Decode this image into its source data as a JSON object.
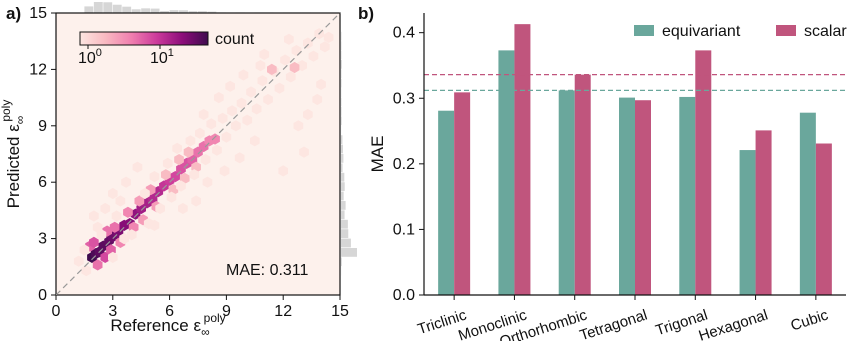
{
  "panel_a": {
    "label": "a)",
    "colorbar": {
      "title": "count",
      "tick_labels": [
        {
          "base": "10",
          "exp": "0"
        },
        {
          "base": "10",
          "exp": "1"
        }
      ],
      "colormap": [
        "#fde6e1",
        "#f9b9c1",
        "#f07faf",
        "#cc3a9b",
        "#8c0d7a",
        "#3f0b4e"
      ]
    },
    "annotation": "MAE: 0.311",
    "plot_background": "#fdf1ec",
    "diagonal_color": "#999999",
    "marginal_color": "#d6d6d6"
  },
  "panel_b": {
    "label": "b)",
    "legend": [
      "equivariant",
      "scalar"
    ]
  },
  "chart_data": [
    {
      "type": "scatter",
      "subtype": "hexbin",
      "xlabel": {
        "main": "Reference ε",
        "sub": "∞",
        "sup": "poly"
      },
      "ylabel": {
        "main": "Predicted ε",
        "sub": "∞",
        "sup": "poly"
      },
      "xlim": [
        0,
        15
      ],
      "ylim": [
        0,
        15
      ],
      "xticks": [
        0,
        3,
        6,
        9,
        12,
        15
      ],
      "yticks": [
        0,
        3,
        6,
        9,
        12,
        15
      ],
      "reference_line": "y = x (dashed)",
      "color_scale": "log",
      "points": [
        [
          1.9,
          2.0,
          40
        ],
        [
          2.1,
          2.2,
          35
        ],
        [
          2.3,
          2.3,
          30
        ],
        [
          2.5,
          2.6,
          30
        ],
        [
          2.8,
          2.9,
          28
        ],
        [
          3.0,
          3.1,
          25
        ],
        [
          3.3,
          3.3,
          22
        ],
        [
          3.6,
          3.7,
          20
        ],
        [
          3.9,
          3.8,
          20
        ],
        [
          4.2,
          4.3,
          18
        ],
        [
          4.5,
          4.6,
          15
        ],
        [
          4.8,
          4.9,
          14
        ],
        [
          5.1,
          5.1,
          12
        ],
        [
          5.4,
          5.5,
          12
        ],
        [
          5.7,
          5.8,
          10
        ],
        [
          6.0,
          6.1,
          9
        ],
        [
          6.3,
          6.3,
          8
        ],
        [
          6.6,
          6.7,
          7
        ],
        [
          6.9,
          7.0,
          7
        ],
        [
          7.2,
          7.2,
          6
        ],
        [
          7.5,
          7.6,
          5
        ],
        [
          7.8,
          7.9,
          5
        ],
        [
          8.1,
          8.2,
          4
        ],
        [
          8.4,
          8.3,
          4
        ],
        [
          1.8,
          2.6,
          6
        ],
        [
          2.2,
          1.6,
          5
        ],
        [
          2.6,
          2.0,
          8
        ],
        [
          2.0,
          2.8,
          7
        ],
        [
          2.9,
          2.4,
          6
        ],
        [
          3.1,
          3.6,
          5
        ],
        [
          3.4,
          2.8,
          4
        ],
        [
          2.7,
          3.4,
          5
        ],
        [
          3.8,
          4.4,
          4
        ],
        [
          4.1,
          3.6,
          4
        ],
        [
          4.4,
          5.0,
          3
        ],
        [
          4.6,
          4.0,
          3
        ],
        [
          5.0,
          5.6,
          3
        ],
        [
          5.3,
          4.7,
          3
        ],
        [
          5.8,
          6.4,
          2
        ],
        [
          6.2,
          5.6,
          2
        ],
        [
          6.5,
          7.2,
          2
        ],
        [
          6.8,
          6.2,
          2
        ],
        [
          7.0,
          7.6,
          2
        ],
        [
          7.4,
          6.8,
          2
        ],
        [
          1.2,
          1.8,
          1
        ],
        [
          1.6,
          1.3,
          1
        ],
        [
          1.5,
          2.4,
          1
        ],
        [
          2.4,
          3.2,
          1
        ],
        [
          3.0,
          2.0,
          1
        ],
        [
          3.6,
          3.0,
          1
        ],
        [
          2.2,
          3.6,
          1
        ],
        [
          3.2,
          4.2,
          1
        ],
        [
          4.0,
          3.2,
          1
        ],
        [
          4.7,
          5.4,
          1
        ],
        [
          4.9,
          3.8,
          1
        ],
        [
          3.4,
          5.0,
          1
        ],
        [
          5.2,
          6.3,
          1
        ],
        [
          5.5,
          4.6,
          1
        ],
        [
          5.9,
          7.0,
          1
        ],
        [
          6.1,
          5.2,
          1
        ],
        [
          6.4,
          7.8,
          1
        ],
        [
          6.6,
          5.8,
          1
        ],
        [
          7.1,
          8.2,
          1
        ],
        [
          7.3,
          6.4,
          1
        ],
        [
          7.6,
          8.6,
          1
        ],
        [
          7.9,
          7.2,
          1
        ],
        [
          8.2,
          9.1,
          1
        ],
        [
          8.5,
          7.7,
          1
        ],
        [
          8.8,
          9.4,
          1
        ],
        [
          9.0,
          8.4,
          1
        ],
        [
          9.3,
          9.8,
          1
        ],
        [
          9.5,
          9.0,
          1
        ],
        [
          9.8,
          10.2,
          1
        ],
        [
          10.1,
          9.3,
          1
        ],
        [
          10.3,
          10.8,
          1
        ],
        [
          10.6,
          9.9,
          1
        ],
        [
          10.9,
          11.4,
          1
        ],
        [
          11.2,
          10.4,
          1
        ],
        [
          11.5,
          11.9,
          1
        ],
        [
          11.8,
          11.0,
          1
        ],
        [
          12.1,
          12.5,
          1
        ],
        [
          12.4,
          11.6,
          1
        ],
        [
          12.7,
          13.0,
          1
        ],
        [
          13.0,
          12.2,
          1
        ],
        [
          13.3,
          13.4,
          1
        ],
        [
          13.6,
          12.7,
          1
        ],
        [
          13.9,
          13.9,
          1
        ],
        [
          14.2,
          13.2,
          1
        ],
        [
          14.4,
          13.7,
          1
        ],
        [
          11.0,
          12.8,
          1
        ],
        [
          12.3,
          13.6,
          1
        ],
        [
          10.8,
          12.2,
          1
        ],
        [
          13.8,
          10.4,
          1
        ],
        [
          14.0,
          11.2,
          1
        ],
        [
          13.3,
          9.6,
          1
        ],
        [
          12.8,
          9.0,
          1
        ],
        [
          13.1,
          7.6,
          1
        ],
        [
          12.0,
          6.6,
          1
        ],
        [
          10.5,
          8.2,
          1
        ],
        [
          9.7,
          7.3,
          1
        ],
        [
          8.9,
          6.6,
          1
        ],
        [
          8.0,
          6.0,
          1
        ],
        [
          7.4,
          5.0,
          1
        ],
        [
          6.7,
          4.6,
          1
        ],
        [
          5.2,
          3.7,
          1
        ],
        [
          4.3,
          6.8,
          1
        ],
        [
          3.7,
          6.0,
          1
        ],
        [
          3.0,
          5.4,
          1
        ],
        [
          2.6,
          4.6,
          1
        ],
        [
          2.0,
          4.2,
          1
        ],
        [
          9.2,
          11.1,
          1
        ],
        [
          9.9,
          11.7,
          1
        ],
        [
          8.6,
          10.5,
          1
        ],
        [
          7.8,
          9.6,
          1
        ],
        [
          11.4,
          12.0,
          2
        ],
        [
          12.6,
          12.1,
          2
        ]
      ]
    },
    {
      "type": "bar",
      "ylabel": "MAE",
      "ylim": [
        0,
        0.43
      ],
      "yticks": [
        0.0,
        0.1,
        0.2,
        0.3,
        0.4
      ],
      "categories": [
        "Triclinic",
        "Monoclinic",
        "Orthorhombic",
        "Tetragonal",
        "Trigonal",
        "Hexagonal",
        "Cubic"
      ],
      "series": [
        {
          "name": "equivariant",
          "color": "#6aa79c",
          "values": [
            0.281,
            0.373,
            0.312,
            0.301,
            0.302,
            0.221,
            0.278
          ],
          "overall": 0.312
        },
        {
          "name": "scalar",
          "color": "#c0557d",
          "values": [
            0.309,
            0.413,
            0.336,
            0.297,
            0.373,
            0.251,
            0.231
          ],
          "overall": 0.336
        }
      ]
    }
  ]
}
